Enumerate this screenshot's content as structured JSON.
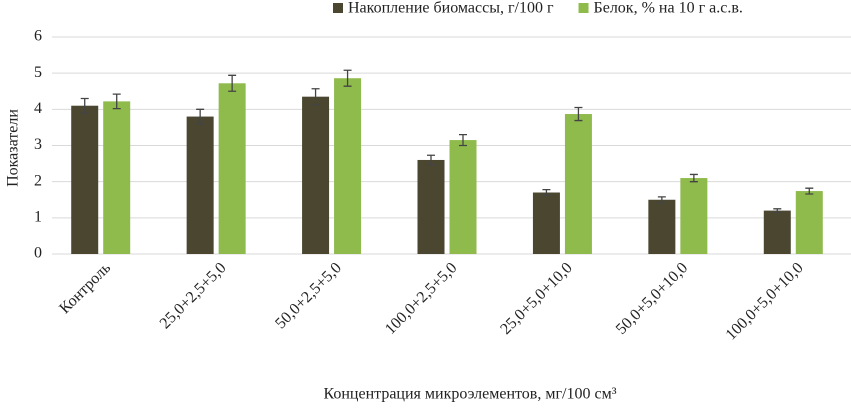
{
  "chart_data": {
    "type": "bar",
    "x_label": "Концентрация микроэлементов, мг/100 см³",
    "y_label": "Показатели",
    "categories": [
      "Контроль",
      "25,0+2,5+5,0",
      "50,0+2,5+5,0",
      "100,0+2,5+5,0",
      "25,0+5,0+10,0",
      "50,0+5,0+10,0",
      "100,0+5,0+10,0"
    ],
    "series": [
      {
        "name": "Накопление биомассы, г/100 г",
        "color": "#4a4630",
        "values": [
          4.1,
          3.8,
          4.35,
          2.6,
          1.7,
          1.5,
          1.2
        ],
        "errors": [
          0.2,
          0.2,
          0.22,
          0.13,
          0.08,
          0.08,
          0.05
        ]
      },
      {
        "name": "Белок, % на 10 г а.с.в.",
        "color": "#8fba4c",
        "values": [
          4.22,
          4.72,
          4.86,
          3.15,
          3.87,
          2.1,
          1.74
        ],
        "errors": [
          0.2,
          0.22,
          0.22,
          0.15,
          0.18,
          0.1,
          0.08
        ]
      }
    ],
    "ylim": [
      0,
      6
    ],
    "yticks": [
      0,
      1,
      2,
      3,
      4,
      5,
      6
    ],
    "grid": true,
    "legend": "top-right"
  }
}
